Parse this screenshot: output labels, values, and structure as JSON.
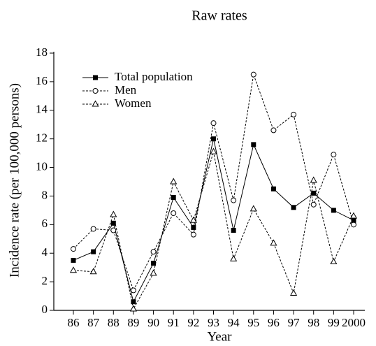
{
  "chart_data": {
    "type": "line",
    "title": "Raw rates",
    "x_label": "Year",
    "y_label": "Incidence rate (per 100,000 persons)",
    "categories": [
      "86",
      "87",
      "88",
      "89",
      "90",
      "91",
      "92",
      "93",
      "94",
      "95",
      "96",
      "97",
      "98",
      "99",
      "2000"
    ],
    "series": [
      {
        "name": "Total population",
        "color": "#000000",
        "line_style": "solid",
        "marker": "square",
        "values": [
          3.5,
          4.1,
          6.1,
          0.6,
          3.3,
          7.9,
          5.8,
          12.0,
          5.6,
          11.6,
          8.5,
          7.2,
          8.2,
          7.0,
          6.3
        ]
      },
      {
        "name": "Men",
        "color": "#000000",
        "line_style": "dashed",
        "marker": "circle",
        "values": [
          4.3,
          5.7,
          5.6,
          1.4,
          4.1,
          6.8,
          5.3,
          13.1,
          7.7,
          16.5,
          12.6,
          13.7,
          7.4,
          10.9,
          6.0
        ]
      },
      {
        "name": "Women",
        "color": "#000000",
        "line_style": "dashed",
        "marker": "triangle",
        "values": [
          2.8,
          2.7,
          6.7,
          0.1,
          2.6,
          9.0,
          6.3,
          11.1,
          3.6,
          7.1,
          4.7,
          1.2,
          9.1,
          3.4,
          6.6
        ]
      }
    ],
    "ylim": [
      0,
      18
    ],
    "yticks": [
      0,
      2,
      4,
      6,
      8,
      10,
      12,
      14,
      16,
      18
    ],
    "legend": "upper-left"
  }
}
